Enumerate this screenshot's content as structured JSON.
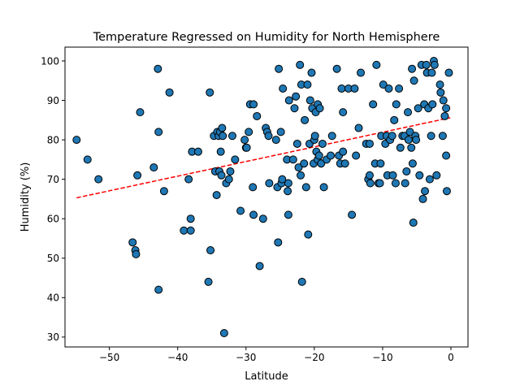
{
  "chart_data": {
    "type": "scatter",
    "title": "Temperature Regressed on Humidity for North Hemisphere",
    "xlabel": "Latitude",
    "ylabel": "Humidity (%)",
    "xlim": [
      -56.5,
      2.5
    ],
    "ylim": [
      27.5,
      103.5
    ],
    "xticks": [
      -50,
      -40,
      -30,
      -20,
      -10,
      0
    ],
    "yticks": [
      30,
      40,
      50,
      60,
      70,
      80,
      90,
      100
    ],
    "grid": false,
    "legend": "none",
    "point_color": "#1f77b4",
    "point_edge_color": "#000000",
    "line_color": "#ff0000",
    "regression_line": {
      "x_start": -54.8,
      "y_start": 65.3,
      "x_end": -0.1,
      "y_end": 85.6
    },
    "points": [
      [
        -54.8,
        80
      ],
      [
        -53.2,
        75
      ],
      [
        -51.6,
        70
      ],
      [
        -46.6,
        54
      ],
      [
        -46.2,
        52
      ],
      [
        -46.1,
        51
      ],
      [
        -45.9,
        71
      ],
      [
        -45.5,
        87
      ],
      [
        -43.5,
        73
      ],
      [
        -42.9,
        98
      ],
      [
        -42.8,
        82
      ],
      [
        -42.8,
        42
      ],
      [
        -42.0,
        67
      ],
      [
        -41.2,
        92
      ],
      [
        -39.1,
        57
      ],
      [
        -38.4,
        70
      ],
      [
        -38.1,
        60
      ],
      [
        -38.1,
        57
      ],
      [
        -37.9,
        77
      ],
      [
        -37.0,
        77
      ],
      [
        -35.5,
        44
      ],
      [
        -35.3,
        92
      ],
      [
        -35.2,
        52
      ],
      [
        -34.7,
        81
      ],
      [
        -34.5,
        72
      ],
      [
        -34.3,
        66
      ],
      [
        -34.2,
        82
      ],
      [
        -34.0,
        81
      ],
      [
        -33.9,
        72
      ],
      [
        -33.8,
        82
      ],
      [
        -33.7,
        77
      ],
      [
        -33.6,
        71
      ],
      [
        -33.5,
        83
      ],
      [
        -33.4,
        81
      ],
      [
        -33.2,
        31
      ],
      [
        -32.9,
        69
      ],
      [
        -32.5,
        70
      ],
      [
        -32.3,
        72
      ],
      [
        -32.0,
        81
      ],
      [
        -31.6,
        75
      ],
      [
        -30.8,
        62
      ],
      [
        -30.2,
        80
      ],
      [
        -30.0,
        78
      ],
      [
        -29.9,
        78
      ],
      [
        -29.6,
        82
      ],
      [
        -29.4,
        89
      ],
      [
        -29.0,
        68
      ],
      [
        -28.9,
        61
      ],
      [
        -28.9,
        89
      ],
      [
        -28.4,
        86
      ],
      [
        -28.0,
        48
      ],
      [
        -27.5,
        60
      ],
      [
        -27.1,
        83
      ],
      [
        -26.9,
        82
      ],
      [
        -26.7,
        81
      ],
      [
        -26.6,
        69
      ],
      [
        -25.6,
        80
      ],
      [
        -25.4,
        68
      ],
      [
        -25.3,
        54
      ],
      [
        -25.2,
        98
      ],
      [
        -24.9,
        82
      ],
      [
        -24.8,
        69
      ],
      [
        -24.7,
        70
      ],
      [
        -24.6,
        93
      ],
      [
        -24.0,
        75
      ],
      [
        -23.9,
        67
      ],
      [
        -23.8,
        69
      ],
      [
        -23.8,
        61
      ],
      [
        -23.7,
        90
      ],
      [
        -23.1,
        75
      ],
      [
        -22.9,
        88
      ],
      [
        -22.7,
        91
      ],
      [
        -22.5,
        79
      ],
      [
        -22.3,
        73
      ],
      [
        -22.1,
        99
      ],
      [
        -22.0,
        71
      ],
      [
        -21.9,
        94
      ],
      [
        -21.8,
        44
      ],
      [
        -21.5,
        74
      ],
      [
        -21.4,
        85
      ],
      [
        -21.2,
        68
      ],
      [
        -21.0,
        94
      ],
      [
        -20.9,
        56
      ],
      [
        -20.7,
        79
      ],
      [
        -20.6,
        90
      ],
      [
        -20.4,
        97
      ],
      [
        -20.3,
        88
      ],
      [
        -20.1,
        74
      ],
      [
        -20.0,
        80
      ],
      [
        -19.9,
        81
      ],
      [
        -19.8,
        87
      ],
      [
        -19.7,
        77
      ],
      [
        -19.5,
        89
      ],
      [
        -19.5,
        75
      ],
      [
        -19.3,
        76
      ],
      [
        -19.2,
        88
      ],
      [
        -19.0,
        74
      ],
      [
        -18.8,
        79
      ],
      [
        -18.6,
        68
      ],
      [
        -18.2,
        75
      ],
      [
        -17.6,
        76
      ],
      [
        -17.4,
        81
      ],
      [
        -16.7,
        98
      ],
      [
        -16.4,
        76
      ],
      [
        -16.2,
        74
      ],
      [
        -16.0,
        93
      ],
      [
        -15.8,
        87
      ],
      [
        -15.8,
        77
      ],
      [
        -15.5,
        74
      ],
      [
        -15.0,
        93
      ],
      [
        -14.5,
        61
      ],
      [
        -14.1,
        93
      ],
      [
        -13.9,
        76
      ],
      [
        -13.5,
        83
      ],
      [
        -13.2,
        97
      ],
      [
        -12.4,
        79
      ],
      [
        -12.1,
        70
      ],
      [
        -11.9,
        79
      ],
      [
        -11.9,
        71
      ],
      [
        -11.8,
        69
      ],
      [
        -11.4,
        89
      ],
      [
        -11.1,
        74
      ],
      [
        -10.9,
        99
      ],
      [
        -10.6,
        69
      ],
      [
        -10.4,
        69
      ],
      [
        -10.3,
        74
      ],
      [
        -10.2,
        81
      ],
      [
        -9.9,
        94
      ],
      [
        -9.6,
        79
      ],
      [
        -9.4,
        81
      ],
      [
        -9.3,
        71
      ],
      [
        -9.1,
        93
      ],
      [
        -8.9,
        80
      ],
      [
        -8.6,
        81
      ],
      [
        -8.5,
        71
      ],
      [
        -8.3,
        85
      ],
      [
        -8.1,
        69
      ],
      [
        -8.0,
        89
      ],
      [
        -7.6,
        93
      ],
      [
        -7.4,
        78
      ],
      [
        -7.1,
        81
      ],
      [
        -6.8,
        81
      ],
      [
        -6.7,
        69
      ],
      [
        -6.5,
        72
      ],
      [
        -6.3,
        87
      ],
      [
        -6.2,
        80
      ],
      [
        -6.0,
        82
      ],
      [
        -5.8,
        78
      ],
      [
        -5.7,
        98
      ],
      [
        -5.6,
        74
      ],
      [
        -5.5,
        59
      ],
      [
        -5.4,
        95
      ],
      [
        -5.2,
        81
      ],
      [
        -5.1,
        80
      ],
      [
        -4.8,
        88
      ],
      [
        -4.6,
        71
      ],
      [
        -4.3,
        99
      ],
      [
        -4.1,
        65
      ],
      [
        -3.9,
        89
      ],
      [
        -3.8,
        67
      ],
      [
        -3.6,
        99
      ],
      [
        -3.5,
        97
      ],
      [
        -3.3,
        88
      ],
      [
        -3.1,
        70
      ],
      [
        -2.9,
        81
      ],
      [
        -2.8,
        97
      ],
      [
        -2.7,
        89
      ],
      [
        -2.5,
        100
      ],
      [
        -2.4,
        99
      ],
      [
        -2.1,
        71
      ],
      [
        -1.6,
        94
      ],
      [
        -1.5,
        92
      ],
      [
        -1.2,
        81
      ],
      [
        -1.1,
        90
      ],
      [
        -0.9,
        86
      ],
      [
        -0.7,
        76
      ],
      [
        -0.7,
        88
      ],
      [
        -0.6,
        67
      ],
      [
        -0.3,
        97
      ]
    ]
  }
}
